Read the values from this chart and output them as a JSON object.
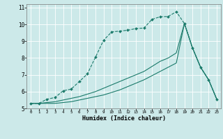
{
  "xlabel": "Humidex (Indice chaleur)",
  "background_color": "#cce9e9",
  "line_color": "#1a7a6a",
  "grid_color": "#ffffff",
  "xlim": [
    -0.5,
    23.5
  ],
  "ylim": [
    5,
    11.2
  ],
  "x_ticks": [
    0,
    1,
    2,
    3,
    4,
    5,
    6,
    7,
    8,
    9,
    10,
    11,
    12,
    13,
    14,
    15,
    16,
    17,
    18,
    19,
    20,
    21,
    22,
    23
  ],
  "y_ticks": [
    5,
    6,
    7,
    8,
    9,
    10,
    11
  ],
  "line1_x": [
    0,
    1,
    2,
    3,
    4,
    5,
    6,
    7,
    8,
    9,
    10,
    11,
    12,
    13,
    14,
    15,
    16,
    17,
    18,
    19,
    20,
    21,
    22,
    23
  ],
  "line1_y": [
    5.3,
    5.3,
    5.55,
    5.65,
    6.05,
    6.15,
    6.6,
    7.05,
    8.05,
    9.05,
    9.55,
    9.6,
    9.65,
    9.75,
    9.78,
    10.3,
    10.45,
    10.47,
    10.75,
    10.05,
    8.6,
    7.45,
    6.7,
    5.55
  ],
  "line2_x": [
    0,
    1,
    2,
    3,
    4,
    5,
    6,
    7,
    8,
    9,
    10,
    11,
    12,
    13,
    14,
    15,
    16,
    17,
    18,
    19,
    20,
    21,
    22,
    23
  ],
  "line2_y": [
    5.3,
    5.3,
    5.35,
    5.4,
    5.5,
    5.6,
    5.7,
    5.85,
    6.0,
    6.2,
    6.4,
    6.6,
    6.8,
    7.0,
    7.2,
    7.5,
    7.8,
    8.0,
    8.3,
    10.05,
    8.6,
    7.45,
    6.7,
    5.55
  ],
  "line3_x": [
    0,
    1,
    2,
    3,
    4,
    5,
    6,
    7,
    8,
    9,
    10,
    11,
    12,
    13,
    14,
    15,
    16,
    17,
    18,
    19,
    20,
    21,
    22,
    23
  ],
  "line3_y": [
    5.3,
    5.3,
    5.3,
    5.3,
    5.35,
    5.4,
    5.5,
    5.6,
    5.7,
    5.8,
    5.95,
    6.1,
    6.3,
    6.5,
    6.7,
    6.95,
    7.2,
    7.45,
    7.7,
    10.05,
    8.6,
    7.45,
    6.7,
    5.55
  ]
}
